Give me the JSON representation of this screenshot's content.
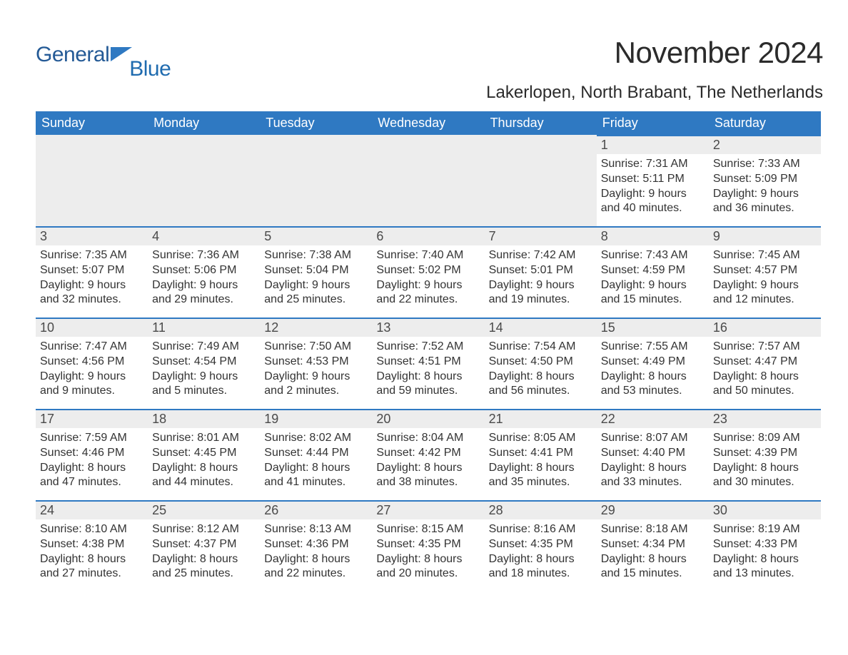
{
  "logo": {
    "word1": "General",
    "word2": "Blue",
    "flag_color": "#2f79c2"
  },
  "title": "November 2024",
  "location": "Lakerlopen, North Brabant, The Netherlands",
  "colors": {
    "header_bg": "#2f79c2",
    "daynum_bg": "#ededed",
    "text": "#333333",
    "title_text": "#2b2b2b"
  },
  "weekdays": [
    "Sunday",
    "Monday",
    "Tuesday",
    "Wednesday",
    "Thursday",
    "Friday",
    "Saturday"
  ],
  "start_weekday_index": 5,
  "days": [
    {
      "n": 1,
      "sunrise": "7:31 AM",
      "sunset": "5:11 PM",
      "day_h": 9,
      "day_m": 40
    },
    {
      "n": 2,
      "sunrise": "7:33 AM",
      "sunset": "5:09 PM",
      "day_h": 9,
      "day_m": 36
    },
    {
      "n": 3,
      "sunrise": "7:35 AM",
      "sunset": "5:07 PM",
      "day_h": 9,
      "day_m": 32
    },
    {
      "n": 4,
      "sunrise": "7:36 AM",
      "sunset": "5:06 PM",
      "day_h": 9,
      "day_m": 29
    },
    {
      "n": 5,
      "sunrise": "7:38 AM",
      "sunset": "5:04 PM",
      "day_h": 9,
      "day_m": 25
    },
    {
      "n": 6,
      "sunrise": "7:40 AM",
      "sunset": "5:02 PM",
      "day_h": 9,
      "day_m": 22
    },
    {
      "n": 7,
      "sunrise": "7:42 AM",
      "sunset": "5:01 PM",
      "day_h": 9,
      "day_m": 19
    },
    {
      "n": 8,
      "sunrise": "7:43 AM",
      "sunset": "4:59 PM",
      "day_h": 9,
      "day_m": 15
    },
    {
      "n": 9,
      "sunrise": "7:45 AM",
      "sunset": "4:57 PM",
      "day_h": 9,
      "day_m": 12
    },
    {
      "n": 10,
      "sunrise": "7:47 AM",
      "sunset": "4:56 PM",
      "day_h": 9,
      "day_m": 9
    },
    {
      "n": 11,
      "sunrise": "7:49 AM",
      "sunset": "4:54 PM",
      "day_h": 9,
      "day_m": 5
    },
    {
      "n": 12,
      "sunrise": "7:50 AM",
      "sunset": "4:53 PM",
      "day_h": 9,
      "day_m": 2
    },
    {
      "n": 13,
      "sunrise": "7:52 AM",
      "sunset": "4:51 PM",
      "day_h": 8,
      "day_m": 59
    },
    {
      "n": 14,
      "sunrise": "7:54 AM",
      "sunset": "4:50 PM",
      "day_h": 8,
      "day_m": 56
    },
    {
      "n": 15,
      "sunrise": "7:55 AM",
      "sunset": "4:49 PM",
      "day_h": 8,
      "day_m": 53
    },
    {
      "n": 16,
      "sunrise": "7:57 AM",
      "sunset": "4:47 PM",
      "day_h": 8,
      "day_m": 50
    },
    {
      "n": 17,
      "sunrise": "7:59 AM",
      "sunset": "4:46 PM",
      "day_h": 8,
      "day_m": 47
    },
    {
      "n": 18,
      "sunrise": "8:01 AM",
      "sunset": "4:45 PM",
      "day_h": 8,
      "day_m": 44
    },
    {
      "n": 19,
      "sunrise": "8:02 AM",
      "sunset": "4:44 PM",
      "day_h": 8,
      "day_m": 41
    },
    {
      "n": 20,
      "sunrise": "8:04 AM",
      "sunset": "4:42 PM",
      "day_h": 8,
      "day_m": 38
    },
    {
      "n": 21,
      "sunrise": "8:05 AM",
      "sunset": "4:41 PM",
      "day_h": 8,
      "day_m": 35
    },
    {
      "n": 22,
      "sunrise": "8:07 AM",
      "sunset": "4:40 PM",
      "day_h": 8,
      "day_m": 33
    },
    {
      "n": 23,
      "sunrise": "8:09 AM",
      "sunset": "4:39 PM",
      "day_h": 8,
      "day_m": 30
    },
    {
      "n": 24,
      "sunrise": "8:10 AM",
      "sunset": "4:38 PM",
      "day_h": 8,
      "day_m": 27
    },
    {
      "n": 25,
      "sunrise": "8:12 AM",
      "sunset": "4:37 PM",
      "day_h": 8,
      "day_m": 25
    },
    {
      "n": 26,
      "sunrise": "8:13 AM",
      "sunset": "4:36 PM",
      "day_h": 8,
      "day_m": 22
    },
    {
      "n": 27,
      "sunrise": "8:15 AM",
      "sunset": "4:35 PM",
      "day_h": 8,
      "day_m": 20
    },
    {
      "n": 28,
      "sunrise": "8:16 AM",
      "sunset": "4:35 PM",
      "day_h": 8,
      "day_m": 18
    },
    {
      "n": 29,
      "sunrise": "8:18 AM",
      "sunset": "4:34 PM",
      "day_h": 8,
      "day_m": 15
    },
    {
      "n": 30,
      "sunrise": "8:19 AM",
      "sunset": "4:33 PM",
      "day_h": 8,
      "day_m": 13
    }
  ],
  "labels": {
    "sunrise": "Sunrise: ",
    "sunset": "Sunset: ",
    "daylight_prefix": "Daylight: ",
    "hours_word": " hours",
    "and_word": "and ",
    "minutes_word": " minutes."
  }
}
